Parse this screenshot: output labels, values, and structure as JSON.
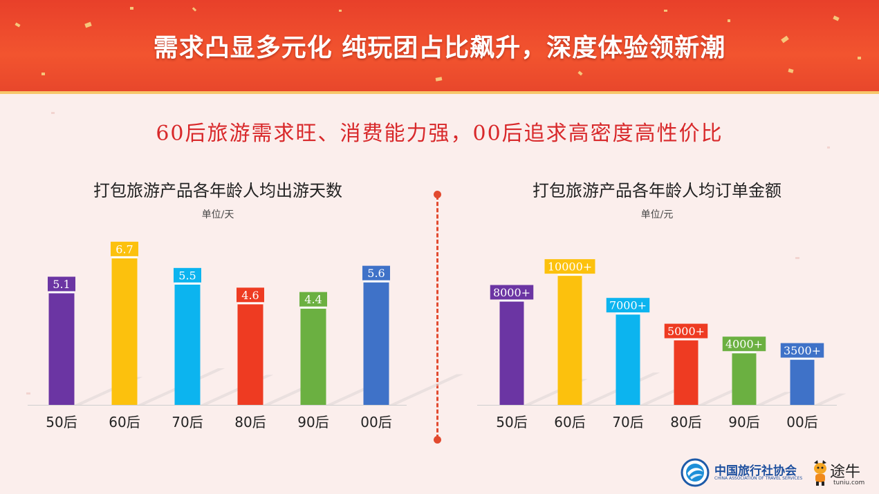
{
  "header": {
    "title": "需求凸显多元化  纯玩团占比飙升，深度体验领新潮"
  },
  "subtitle": "60后旅游需求旺、消费能力强，00后追求高密度高性价比",
  "charts": [
    {
      "title": "打包旅游产品各年龄人均出游天数",
      "unit": "单位/天"
    },
    {
      "title": "打包旅游产品各年龄人均订单金额",
      "unit": "单位/元"
    }
  ],
  "chart_data": [
    {
      "type": "bar",
      "title": "打包旅游产品各年龄人均出游天数",
      "unit": "单位/天",
      "categories": [
        "50后",
        "60后",
        "70后",
        "80后",
        "90后",
        "00后"
      ],
      "values": [
        5.1,
        6.7,
        5.5,
        4.6,
        4.4,
        5.6
      ],
      "data_labels": [
        "5.1",
        "6.7",
        "5.5",
        "4.6",
        "4.4",
        "5.6"
      ],
      "colors": [
        "#6b35a3",
        "#fcc10d",
        "#0cb4ef",
        "#ee3b22",
        "#6bb041",
        "#3f72c8"
      ],
      "ylim": [
        0,
        7.2
      ],
      "grid": false
    },
    {
      "type": "bar",
      "title": "打包旅游产品各年龄人均订单金额",
      "unit": "单位/元",
      "categories": [
        "50后",
        "60后",
        "70后",
        "80后",
        "90后",
        "00后"
      ],
      "values": [
        8000,
        10000,
        7000,
        5000,
        4000,
        3500
      ],
      "data_labels": [
        "8000+",
        "10000+",
        "7000+",
        "5000+",
        "4000+",
        "3500+"
      ],
      "colors": [
        "#6b35a3",
        "#fcc10d",
        "#0cb4ef",
        "#ee3b22",
        "#6bb041",
        "#3f72c8"
      ],
      "ylim": [
        0,
        12200
      ],
      "grid": false
    }
  ],
  "footer": {
    "association_name": "中国旅行社协会",
    "association_name_en": "CHINA ASSOCIATION OF TRAVEL SERVICES",
    "brand_name": "途牛",
    "brand_url": "tuniu.com"
  }
}
